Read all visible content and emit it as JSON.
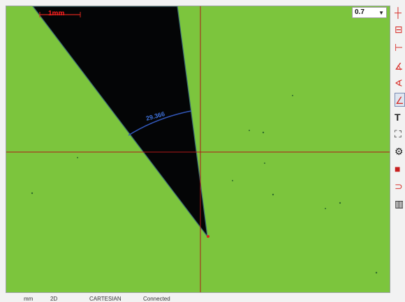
{
  "viewport": {
    "scale_bar_label": "1mm",
    "angle_readout": "29.366"
  },
  "toolbar": {
    "zoom_value": "0.7",
    "tools": [
      {
        "name": "crosshair-icon",
        "glyph": "┼",
        "color": "#d8312c"
      },
      {
        "name": "box-icon",
        "glyph": "⊟",
        "color": "#d8312c"
      },
      {
        "name": "measure-line-icon",
        "glyph": "⊢",
        "color": "#d8312c"
      },
      {
        "name": "angle-a-icon",
        "glyph": "∡",
        "color": "#d8312c"
      },
      {
        "name": "angle-b-icon",
        "glyph": "∢",
        "color": "#d8312c"
      },
      {
        "name": "angle-tool-icon",
        "glyph": "∠",
        "color": "#d8312c"
      },
      {
        "name": "text-icon",
        "glyph": "T",
        "color": "#222222"
      },
      {
        "name": "fit-icon",
        "glyph": "⛶",
        "color": "#222222"
      },
      {
        "name": "settings-icon",
        "glyph": "⚙",
        "color": "#222222"
      },
      {
        "name": "record-icon",
        "glyph": "■",
        "color": "#c81f1f"
      },
      {
        "name": "layers-icon",
        "glyph": "⊃",
        "color": "#d8312c"
      },
      {
        "name": "barcode-icon",
        "glyph": "▥",
        "color": "#222222"
      }
    ]
  },
  "statusbar": {
    "unit": "mm",
    "mode": "2D",
    "coord_system": "CARTESIAN",
    "connection": "Connected"
  }
}
